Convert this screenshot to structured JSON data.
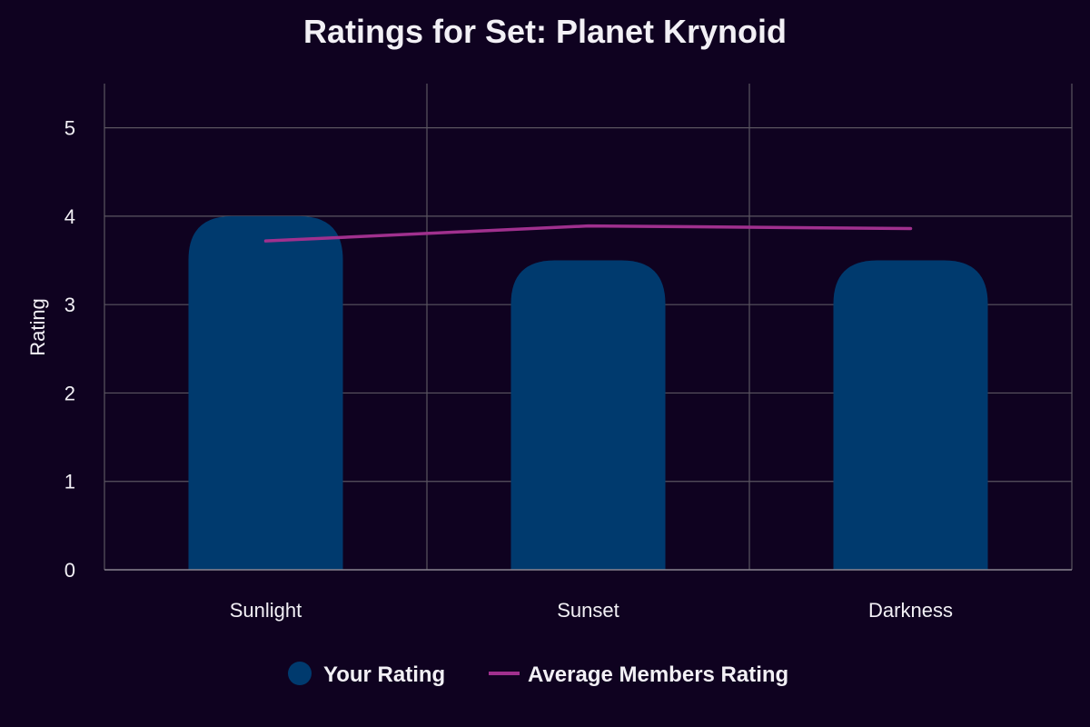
{
  "chart_data": {
    "type": "bar",
    "title": "Ratings for Set: Planet Krynoid",
    "xlabel": "",
    "ylabel": "Rating",
    "ylim": [
      0,
      5.5
    ],
    "yticks": [
      0,
      1,
      2,
      3,
      4,
      5
    ],
    "categories": [
      "Sunlight",
      "Sunset",
      "Darkness"
    ],
    "grid": true,
    "legend_position": "bottom",
    "series": [
      {
        "name": "Your Rating",
        "type": "bar",
        "values": [
          4.0,
          3.5,
          3.5
        ],
        "color": "#003a6e"
      },
      {
        "name": "Average Members Rating",
        "type": "line",
        "values": [
          3.72,
          3.89,
          3.86
        ],
        "color": "#a0308e"
      }
    ]
  }
}
